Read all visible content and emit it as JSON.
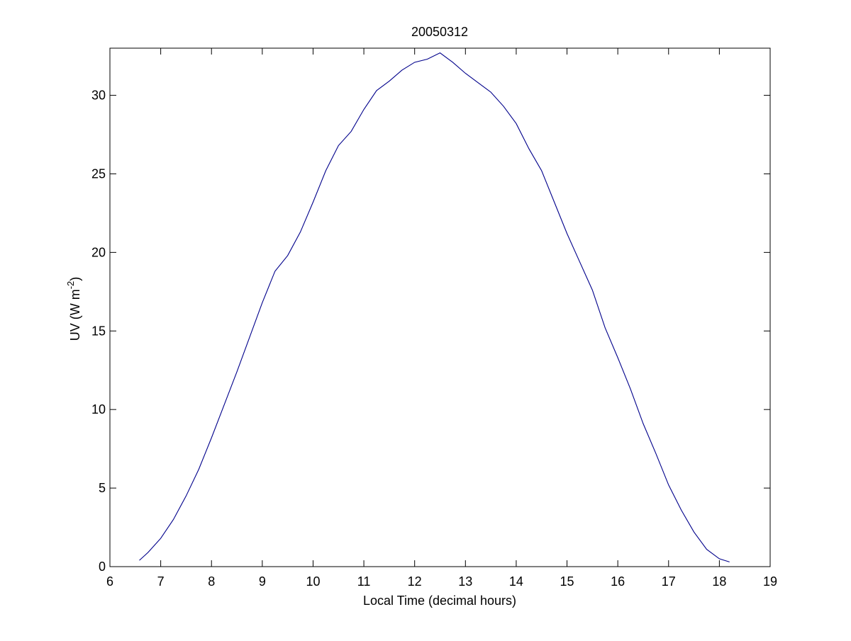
{
  "chart_data": {
    "type": "line",
    "title": "20050312",
    "xlabel": "Local Time (decimal hours)",
    "ylabel": "UV (W m^-2)",
    "ylabel_parts": {
      "prefix": "UV (W m",
      "superscript": "-2",
      "suffix": ")"
    },
    "xlim": [
      6,
      19
    ],
    "ylim": [
      0,
      33
    ],
    "xticks": [
      6,
      7,
      8,
      9,
      10,
      11,
      12,
      13,
      14,
      15,
      16,
      17,
      18,
      19
    ],
    "yticks": [
      0,
      5,
      10,
      15,
      20,
      25,
      30
    ],
    "grid": false,
    "line_color": "#00008B",
    "series": [
      {
        "x": [
          6.58,
          6.75,
          7.0,
          7.25,
          7.5,
          7.75,
          8.0,
          8.25,
          8.5,
          8.75,
          9.0,
          9.25,
          9.5,
          9.75,
          10.0,
          10.25,
          10.5,
          10.75,
          11.0,
          11.25,
          11.5,
          11.75,
          12.0,
          12.25,
          12.5,
          12.75,
          13.0,
          13.25,
          13.5,
          13.75,
          14.0,
          14.25,
          14.5,
          14.75,
          15.0,
          15.25,
          15.5,
          15.75,
          16.0,
          16.25,
          16.5,
          16.75,
          17.0,
          17.25,
          17.5,
          17.75,
          18.0,
          18.2
        ],
        "y": [
          0.4,
          0.9,
          1.8,
          3.0,
          4.5,
          6.2,
          8.2,
          10.3,
          12.4,
          14.6,
          16.8,
          18.8,
          19.8,
          21.3,
          23.2,
          25.2,
          26.8,
          27.7,
          29.1,
          30.3,
          30.9,
          31.6,
          32.1,
          32.3,
          32.7,
          32.1,
          31.4,
          30.8,
          30.2,
          29.3,
          28.2,
          26.6,
          25.2,
          23.2,
          21.2,
          19.4,
          17.6,
          15.2,
          13.3,
          11.3,
          9.1,
          7.2,
          5.2,
          3.6,
          2.2,
          1.1,
          0.5,
          0.3
        ]
      }
    ]
  }
}
